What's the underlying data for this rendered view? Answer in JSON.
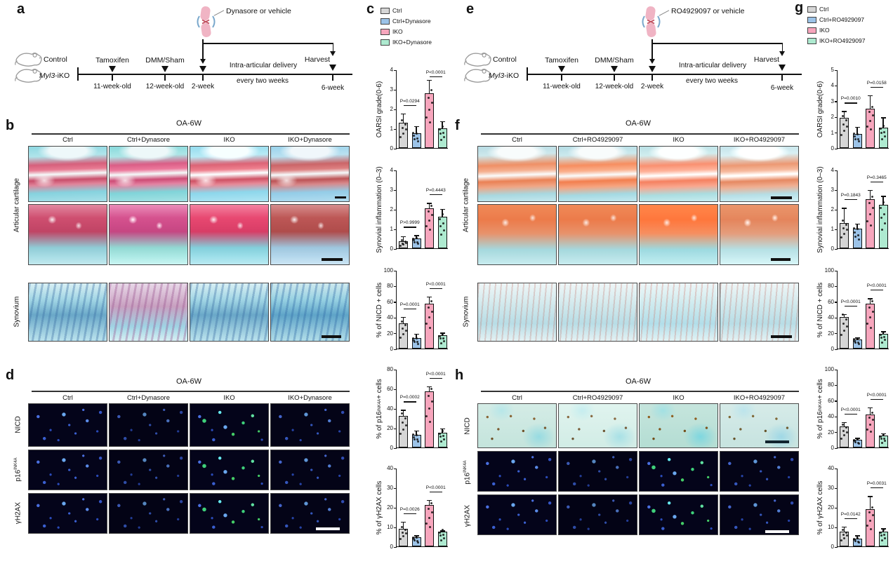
{
  "bar_colors": [
    "#d6d6d6",
    "#9cc3e8",
    "#f7a6bd",
    "#aeead0"
  ],
  "panels": {
    "a": {
      "label": "a",
      "injection": "Dynasore or vehicle",
      "mouse1": "Control",
      "mouse2_gene": "Myl3",
      "mouse2_suffix": "-iKO",
      "events": [
        "Tamoxifen",
        "DMM/Sham"
      ],
      "timepoints": [
        "11-week-old",
        "12-week-old",
        "2-week"
      ],
      "delivery_line1": "Intra-articular delivery",
      "delivery_line2": "every two weeks",
      "harvest": "Harvest",
      "harvest_time": "6-week"
    },
    "b": {
      "label": "b",
      "title": "OA-6W",
      "columns": [
        "Ctrl",
        "Ctrl+Dynasore",
        "IKO",
        "IKO+Dynasore"
      ],
      "row_label_cartilage": "Articular cartilage",
      "row_label_synovium": "Synovium"
    },
    "c": {
      "label": "c",
      "legend": [
        "Ctrl",
        "Ctrl+Dynasore",
        "IKO",
        "IKO+Dynasore"
      ]
    },
    "d": {
      "label": "d",
      "title": "OA-6W",
      "columns": [
        "Ctrl",
        "Ctrl+Dynasore",
        "IKO",
        "IKO+Dynasore"
      ],
      "row_labels": [
        "NICD",
        "p16^INK4A^",
        "γH2AX"
      ]
    },
    "e": {
      "label": "e",
      "injection": "RO4929097 or vehicle",
      "mouse1": "Control",
      "mouse2_gene": "Myl3",
      "mouse2_suffix": "-iKO",
      "events": [
        "Tamoxifen",
        "DMM/Sham"
      ],
      "timepoints": [
        "11-week-old",
        "12-week-old",
        "2-week"
      ],
      "delivery_line1": "Intra-articular delivery",
      "delivery_line2": "every two weeks",
      "harvest": "Harvest",
      "harvest_time": "6-week"
    },
    "f": {
      "label": "f",
      "title": "OA-6W",
      "columns": [
        "Ctrl",
        "Ctrl+RO4929097",
        "IKO",
        "IKO+RO4929097"
      ],
      "row_label_cartilage": "Articular cartilage",
      "row_label_synovium": "Synovium"
    },
    "g": {
      "label": "g",
      "legend": [
        "Ctrl",
        "Ctrl+RO4929097",
        "IKO",
        "IKO+RO4929097"
      ]
    },
    "h": {
      "label": "h",
      "title": "OA-6W",
      "columns": [
        "Ctrl",
        "Ctrl+RO4929097",
        "IKO",
        "IKO+RO4929097"
      ],
      "row_labels": [
        "NICD",
        "p16^INK4A^",
        "γH2AX"
      ]
    }
  },
  "chart_data": [
    {
      "panel": "c",
      "type": "bar",
      "ylabel": "OARSI grade(0-6)",
      "ylim": [
        0,
        4
      ],
      "yticks": [
        0,
        1,
        2,
        3,
        4
      ],
      "categories": [
        "Ctrl",
        "Ctrl+Dynasore",
        "IKO",
        "IKO+Dynasore"
      ],
      "values": [
        1.3,
        0.75,
        2.8,
        1.0
      ],
      "errors": [
        0.5,
        0.4,
        0.7,
        0.4
      ],
      "p_values": [
        {
          "pair": [
            0,
            1
          ],
          "label": "P=0.0294"
        },
        {
          "pair": [
            2,
            3
          ],
          "label": "P<0.0001"
        }
      ]
    },
    {
      "panel": "c",
      "type": "bar",
      "ylabel": "Synovial inflammation (0–3)",
      "ylim": [
        0,
        4
      ],
      "yticks": [
        0,
        1,
        2,
        3,
        4
      ],
      "categories": [
        "Ctrl",
        "Ctrl+Dynasore",
        "IKO",
        "IKO+Dynasore"
      ],
      "values": [
        0.35,
        0.5,
        2.05,
        1.6
      ],
      "errors": [
        0.3,
        0.2,
        0.3,
        0.45
      ],
      "p_values": [
        {
          "pair": [
            0,
            1
          ],
          "label": "P>0.9999"
        },
        {
          "pair": [
            2,
            3
          ],
          "label": "P=0.4443"
        }
      ]
    },
    {
      "panel": "c",
      "type": "bar",
      "ylabel": "% of NICD + cells",
      "ylim": [
        0,
        100
      ],
      "yticks": [
        0,
        20,
        40,
        60,
        80,
        100
      ],
      "categories": [
        "Ctrl",
        "Ctrl+Dynasore",
        "IKO",
        "IKO+Dynasore"
      ],
      "values": [
        32,
        13,
        57,
        17
      ],
      "errors": [
        9,
        7,
        10,
        4
      ],
      "p_values": [
        {
          "pair": [
            0,
            1
          ],
          "label": "P=0.0001"
        },
        {
          "pair": [
            2,
            3
          ],
          "label": "P<0.0001"
        }
      ]
    },
    {
      "panel": "c",
      "type": "bar",
      "ylabel": "% of p16^INK4A^ + cells",
      "ylim": [
        0,
        80
      ],
      "yticks": [
        0,
        20,
        40,
        60,
        80
      ],
      "categories": [
        "Ctrl",
        "Ctrl+Dynasore",
        "IKO",
        "IKO+Dynasore"
      ],
      "values": [
        32,
        13,
        57,
        15
      ],
      "errors": [
        7,
        5,
        6,
        5
      ],
      "p_values": [
        {
          "pair": [
            0,
            1
          ],
          "label": "P=0.0002"
        },
        {
          "pair": [
            2,
            3
          ],
          "label": "P<0.0001"
        }
      ]
    },
    {
      "panel": "c",
      "type": "bar",
      "ylabel": "% of γH2AX cells",
      "ylim": [
        0,
        40
      ],
      "yticks": [
        0,
        10,
        20,
        30,
        40
      ],
      "categories": [
        "Ctrl",
        "Ctrl+Dynasore",
        "IKO",
        "IKO+Dynasore"
      ],
      "values": [
        9,
        4.5,
        21,
        7.5
      ],
      "errors": [
        4,
        1.5,
        3,
        1
      ],
      "p_values": [
        {
          "pair": [
            0,
            1
          ],
          "label": "P=0.0026"
        },
        {
          "pair": [
            2,
            3
          ],
          "label": "P<0.0001"
        }
      ]
    },
    {
      "panel": "g",
      "type": "bar",
      "ylabel": "OARSI grade(0-6)",
      "ylim": [
        0,
        5
      ],
      "yticks": [
        0,
        1,
        2,
        3,
        4,
        5
      ],
      "categories": [
        "Ctrl",
        "Ctrl+RO4929097",
        "IKO",
        "IKO+RO4929097"
      ],
      "values": [
        1.9,
        0.9,
        2.5,
        1.3
      ],
      "errors": [
        0.5,
        0.5,
        0.9,
        0.7
      ],
      "p_values": [
        {
          "pair": [
            0,
            1
          ],
          "label": "P=0.0010"
        },
        {
          "pair": [
            2,
            3
          ],
          "label": "P=0.0158"
        }
      ]
    },
    {
      "panel": "g",
      "type": "bar",
      "ylabel": "Synovial inflammation (0–3)",
      "ylim": [
        0,
        4
      ],
      "yticks": [
        0,
        1,
        2,
        3,
        4
      ],
      "categories": [
        "Ctrl",
        "Ctrl+RO4929097",
        "IKO",
        "IKO+RO4929097"
      ],
      "values": [
        1.3,
        1.0,
        2.5,
        2.2
      ],
      "errors": [
        0.8,
        0.3,
        0.5,
        0.5
      ],
      "p_values": [
        {
          "pair": [
            0,
            1
          ],
          "label": "P=0.1843"
        },
        {
          "pair": [
            2,
            3
          ],
          "label": "P=0.3465"
        }
      ]
    },
    {
      "panel": "g",
      "type": "bar",
      "ylabel": "% of NICD + cells",
      "ylim": [
        0,
        100
      ],
      "yticks": [
        0,
        20,
        40,
        60,
        80,
        100
      ],
      "categories": [
        "Ctrl",
        "Ctrl+RO4929097",
        "IKO",
        "IKO+RO4929097"
      ],
      "values": [
        40,
        12,
        57,
        19
      ],
      "errors": [
        5,
        3,
        8,
        4
      ],
      "p_values": [
        {
          "pair": [
            0,
            1
          ],
          "label": "P<0.0001"
        },
        {
          "pair": [
            2,
            3
          ],
          "label": "P<0.0001"
        }
      ]
    },
    {
      "panel": "g",
      "type": "bar",
      "ylabel": "% of p16^INK4A^ + cells",
      "ylim": [
        0,
        100
      ],
      "yticks": [
        0,
        20,
        40,
        60,
        80,
        100
      ],
      "categories": [
        "Ctrl",
        "Ctrl+RO4929097",
        "IKO",
        "IKO+RO4929097"
      ],
      "values": [
        27,
        10,
        42,
        15
      ],
      "errors": [
        6,
        3,
        10,
        4
      ],
      "p_values": [
        {
          "pair": [
            0,
            1
          ],
          "label": "P<0.0001"
        },
        {
          "pair": [
            2,
            3
          ],
          "label": "P<0.0001"
        }
      ]
    },
    {
      "panel": "g",
      "type": "bar",
      "ylabel": "% of γH2AX cells",
      "ylim": [
        0,
        40
      ],
      "yticks": [
        0,
        10,
        20,
        30,
        40
      ],
      "categories": [
        "Ctrl",
        "Ctrl+RO4929097",
        "IKO",
        "IKO+RO4929097"
      ],
      "values": [
        7.5,
        4,
        19,
        7.5
      ],
      "errors": [
        3,
        2,
        7,
        2
      ],
      "p_values": [
        {
          "pair": [
            0,
            1
          ],
          "label": "P=0.0142"
        },
        {
          "pair": [
            2,
            3
          ],
          "label": "P=0.0031"
        }
      ]
    }
  ]
}
